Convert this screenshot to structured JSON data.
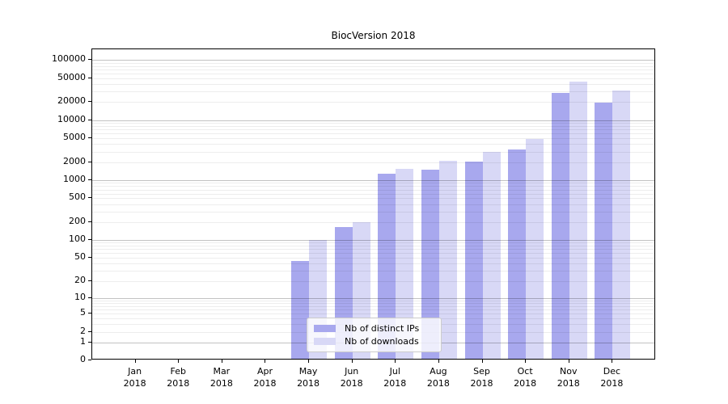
{
  "chart_data": {
    "type": "bar",
    "title": "BiocVersion 2018",
    "categories": [
      "Jan",
      "Feb",
      "Mar",
      "Apr",
      "May",
      "Jun",
      "Jul",
      "Aug",
      "Sep",
      "Oct",
      "Nov",
      "Dec"
    ],
    "x_year_label": "2018",
    "series": [
      {
        "name": "Nb of distinct IPs",
        "color": "#a8a8ee",
        "values": [
          0,
          0,
          0,
          0,
          41,
          155,
          1200,
          1400,
          1900,
          3100,
          27000,
          18500
        ]
      },
      {
        "name": "Nb of downloads",
        "color": "#d8d8f6",
        "values": [
          0,
          0,
          0,
          0,
          95,
          190,
          1450,
          2000,
          2750,
          4600,
          42000,
          29000
        ]
      }
    ],
    "y_ticks": [
      100000,
      50000,
      20000,
      10000,
      5000,
      2000,
      1000,
      500,
      200,
      100,
      50,
      20,
      10,
      5,
      2,
      1,
      0
    ],
    "y_scale": "log10(value+1), linear segment at 0",
    "ylim": [
      0,
      150000
    ],
    "xlabel": "",
    "ylabel": "",
    "grid": "horizontal; faint minor lines at 2-9 per decade, darker lines at powers of 10",
    "legend_position": "lower center"
  }
}
